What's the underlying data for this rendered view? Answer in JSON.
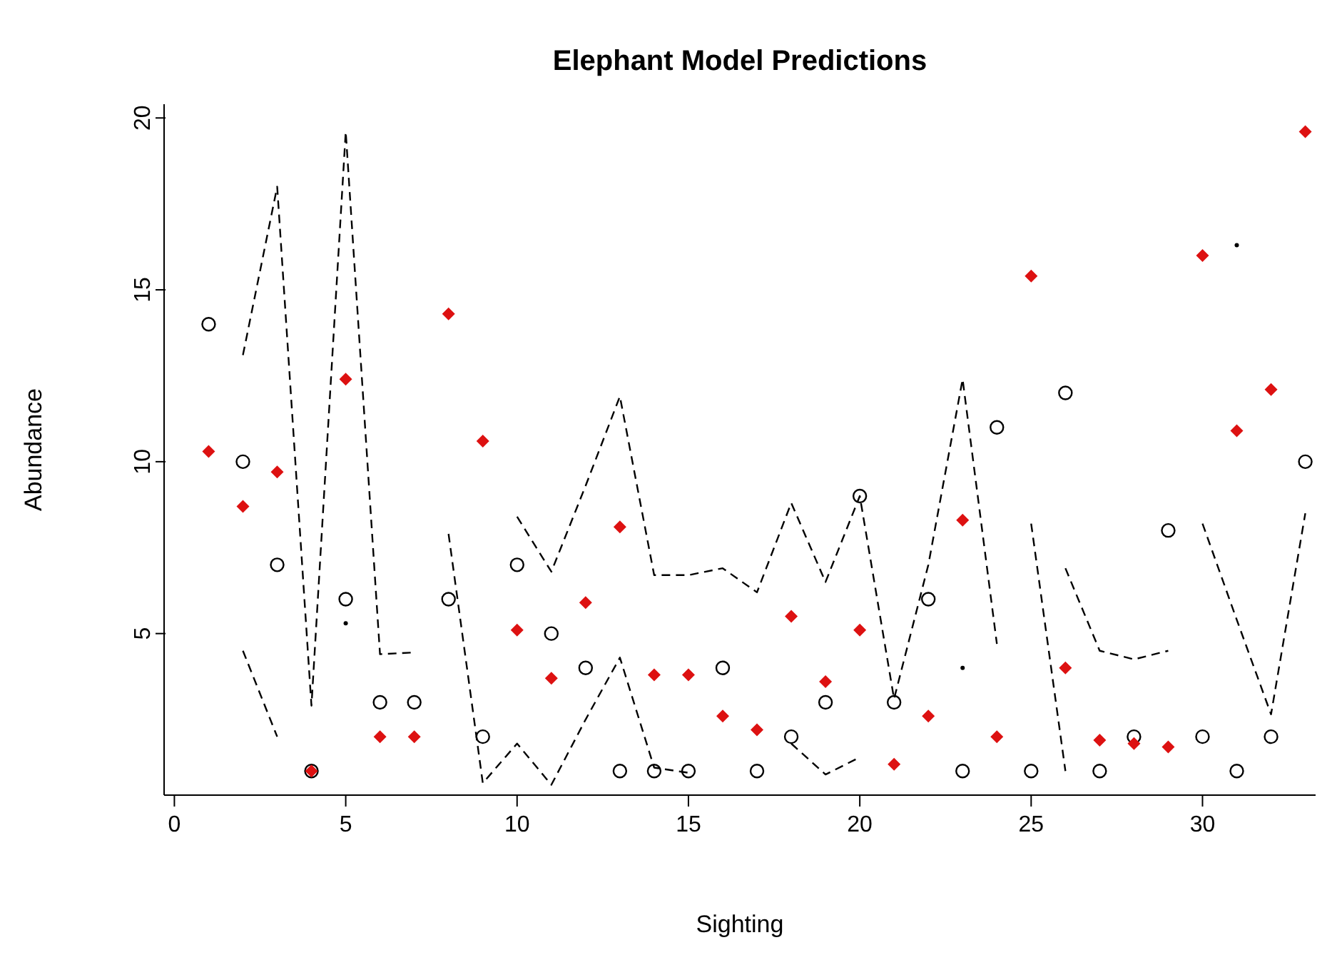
{
  "chart_data": {
    "type": "scatter",
    "title": "Elephant Model Predictions",
    "xlabel": "Sighting",
    "ylabel": "Abundance",
    "x": [
      1,
      2,
      3,
      4,
      5,
      6,
      7,
      8,
      9,
      10,
      11,
      12,
      13,
      14,
      15,
      16,
      17,
      18,
      19,
      20,
      21,
      22,
      23,
      24,
      25,
      26,
      27,
      28,
      29,
      30,
      31,
      32,
      33
    ],
    "series": [
      {
        "marker": "circle",
        "color": "#000000",
        "values": [
          14,
          10,
          7,
          1,
          6,
          3,
          3,
          6,
          2,
          7,
          5,
          4,
          1,
          1,
          1,
          4,
          1,
          2,
          3,
          9,
          3,
          6,
          1,
          11,
          1,
          12,
          1,
          2,
          8,
          2,
          1,
          2,
          10
        ]
      },
      {
        "marker": "diamond",
        "color": "#dd1111",
        "values": [
          10.3,
          8.7,
          9.7,
          1.0,
          12.4,
          2.0,
          2.0,
          14.3,
          10.6,
          5.1,
          3.7,
          5.9,
          8.1,
          3.8,
          3.8,
          2.6,
          2.2,
          5.5,
          3.6,
          5.1,
          1.2,
          2.6,
          8.3,
          2.0,
          15.4,
          4.0,
          1.9,
          1.8,
          1.7,
          16.0,
          10.9,
          12.1,
          19.6
        ]
      },
      {
        "type": "line",
        "marker": "none",
        "line_style": "dashed",
        "color": "#000000",
        "values": [
          null,
          13.1,
          18.0,
          2.9,
          19.6,
          4.4,
          4.45,
          null,
          null,
          8.4,
          6.8,
          9.3,
          11.9,
          6.7,
          6.7,
          6.9,
          6.2,
          8.8,
          6.5,
          9.0,
          3.1,
          7.0,
          12.4,
          4.7,
          null,
          6.9,
          4.5,
          4.25,
          4.5,
          null,
          16.3,
          null,
          null
        ]
      },
      {
        "type": "line",
        "marker": "none",
        "line_style": "dashed",
        "color": "#000000",
        "values": [
          null,
          4.5,
          2.0,
          null,
          5.3,
          null,
          null,
          7.9,
          0.65,
          1.8,
          0.6,
          2.5,
          4.3,
          1.1,
          0.95,
          null,
          null,
          1.8,
          0.9,
          1.4,
          null,
          null,
          4.0,
          null,
          8.2,
          1.0,
          null,
          null,
          null,
          8.2,
          5.4,
          2.65,
          8.5
        ]
      }
    ],
    "xlim": [
      -0.3,
      33.3
    ],
    "ylim": [
      0.3,
      20.4
    ],
    "xticks": [
      0,
      5,
      10,
      15,
      20,
      25,
      30
    ],
    "yticks": [
      5,
      10,
      15,
      20
    ],
    "grid": false,
    "legend": false
  }
}
